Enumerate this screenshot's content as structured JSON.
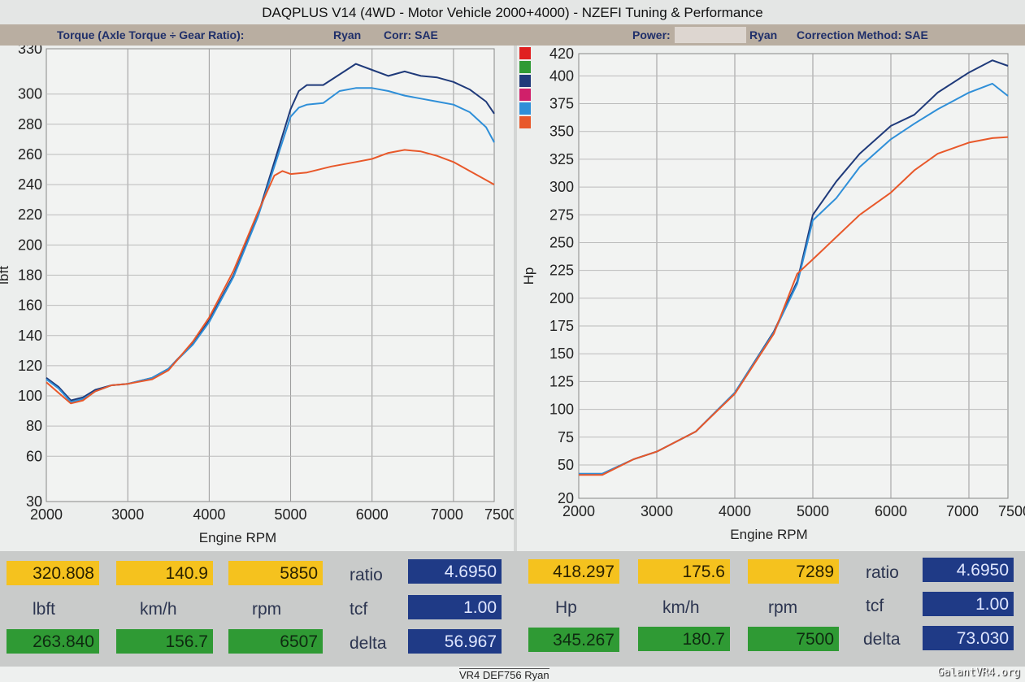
{
  "title": "DAQPLUS V14 (4WD - Motor Vehicle 2000+4000) - NZEFI Tuning & Performance",
  "header": {
    "torque_label": "Torque (Axle Torque ÷ Gear Ratio):",
    "torque_user": "Ryan",
    "torque_corr": "Corr: SAE",
    "power_label": "Power:",
    "power_user": "Ryan",
    "power_corr": "Correction Method: SAE"
  },
  "legend_colors": [
    "#e02020",
    "#2f9a34",
    "#1f3a7a",
    "#d0206a",
    "#2f8fd8",
    "#e8582a"
  ],
  "chart_data": [
    {
      "type": "line",
      "title": "Torque",
      "xlabel": "Engine RPM",
      "ylabel": "lbft",
      "xlim": [
        2000,
        7500
      ],
      "ylim": [
        30,
        330
      ],
      "xticks": [
        2000,
        3000,
        4000,
        5000,
        6000,
        7000,
        7500
      ],
      "yticks": [
        330,
        300,
        280,
        260,
        240,
        220,
        200,
        180,
        160,
        140,
        120,
        100,
        80,
        60,
        30
      ],
      "grid": true,
      "series": [
        {
          "name": "run-dark-blue",
          "color": "#1f3a7a",
          "x": [
            2000,
            2150,
            2300,
            2450,
            2600,
            2800,
            3000,
            3300,
            3500,
            3800,
            4000,
            4300,
            4600,
            4800,
            5000,
            5100,
            5200,
            5400,
            5600,
            5800,
            6000,
            6200,
            6400,
            6600,
            6800,
            7000,
            7200,
            7400,
            7500
          ],
          "y": [
            112,
            106,
            97,
            99,
            104,
            107,
            108,
            112,
            118,
            135,
            150,
            180,
            220,
            255,
            290,
            302,
            306,
            306,
            313,
            320,
            316,
            312,
            315,
            312,
            311,
            308,
            303,
            295,
            287
          ]
        },
        {
          "name": "run-light-blue",
          "color": "#2f8fd8",
          "x": [
            2000,
            2150,
            2300,
            2450,
            2600,
            2800,
            3000,
            3300,
            3500,
            3800,
            4000,
            4300,
            4600,
            4800,
            5000,
            5100,
            5200,
            5400,
            5600,
            5800,
            6000,
            6200,
            6400,
            6600,
            6800,
            7000,
            7200,
            7400,
            7500
          ],
          "y": [
            111,
            105,
            96,
            98,
            103,
            107,
            108,
            112,
            118,
            134,
            149,
            179,
            219,
            252,
            285,
            291,
            293,
            294,
            302,
            304,
            304,
            302,
            299,
            297,
            295,
            293,
            288,
            278,
            268
          ]
        },
        {
          "name": "run-orange",
          "color": "#e8582a",
          "x": [
            2000,
            2150,
            2300,
            2450,
            2600,
            2800,
            3000,
            3300,
            3500,
            3800,
            4000,
            4300,
            4600,
            4800,
            4900,
            5000,
            5200,
            5500,
            5800,
            6000,
            6200,
            6400,
            6600,
            6800,
            7000,
            7200,
            7400,
            7500
          ],
          "y": [
            109,
            102,
            95,
            97,
            103,
            107,
            108,
            111,
            117,
            136,
            152,
            183,
            222,
            246,
            249,
            247,
            248,
            252,
            255,
            257,
            261,
            263,
            262,
            259,
            255,
            249,
            243,
            240
          ]
        }
      ]
    },
    {
      "type": "line",
      "title": "Power",
      "xlabel": "Engine RPM",
      "ylabel": "Hp",
      "xlim": [
        2000,
        7500
      ],
      "ylim": [
        20,
        420
      ],
      "xticks": [
        2000,
        3000,
        4000,
        5000,
        6000,
        7000,
        7500
      ],
      "yticks": [
        420,
        400,
        375,
        350,
        325,
        300,
        275,
        250,
        225,
        200,
        175,
        150,
        125,
        100,
        75,
        50,
        20
      ],
      "grid": true,
      "series": [
        {
          "name": "run-dark-blue",
          "color": "#1f3a7a",
          "x": [
            2000,
            2300,
            2700,
            3000,
            3500,
            4000,
            4500,
            4800,
            5000,
            5300,
            5600,
            6000,
            6300,
            6600,
            7000,
            7300,
            7500
          ],
          "y": [
            42,
            42,
            55,
            62,
            80,
            115,
            170,
            215,
            275,
            305,
            330,
            355,
            365,
            385,
            403,
            414,
            409
          ]
        },
        {
          "name": "run-light-blue",
          "color": "#2f8fd8",
          "x": [
            2000,
            2300,
            2700,
            3000,
            3500,
            4000,
            4500,
            4800,
            5000,
            5300,
            5600,
            6000,
            6300,
            6600,
            7000,
            7300,
            7500
          ],
          "y": [
            42,
            42,
            55,
            62,
            80,
            115,
            169,
            213,
            270,
            290,
            318,
            343,
            357,
            370,
            385,
            393,
            382
          ]
        },
        {
          "name": "run-orange",
          "color": "#e8582a",
          "x": [
            2000,
            2300,
            2700,
            3000,
            3500,
            4000,
            4500,
            4800,
            5000,
            5300,
            5600,
            6000,
            6300,
            6600,
            7000,
            7300,
            7500
          ],
          "y": [
            41,
            41,
            55,
            62,
            80,
            114,
            168,
            222,
            235,
            255,
            275,
            295,
            315,
            330,
            340,
            344,
            345
          ]
        }
      ]
    }
  ],
  "readouts": {
    "left": {
      "cursor1": [
        "320.808",
        "140.9",
        "5850"
      ],
      "units": [
        "lbft",
        "km/h",
        "rpm"
      ],
      "cursor2": [
        "263.840",
        "156.7",
        "6507"
      ],
      "ratio_label": "ratio",
      "ratio": "4.6950",
      "tcf_label": "tcf",
      "tcf": "1.00",
      "delta_label": "delta",
      "delta": "56.967"
    },
    "right": {
      "cursor1": [
        "418.297",
        "175.6",
        "7289"
      ],
      "units": [
        "Hp",
        "km/h",
        "rpm"
      ],
      "cursor2": [
        "345.267",
        "180.7",
        "7500"
      ],
      "ratio_label": "ratio",
      "ratio": "4.6950",
      "tcf_label": "tcf",
      "tcf": "1.00",
      "delta_label": "delta",
      "delta": "73.030"
    }
  },
  "footer_label": "VR4 DEF756 Ryan",
  "watermark": "GalantVR4.org"
}
